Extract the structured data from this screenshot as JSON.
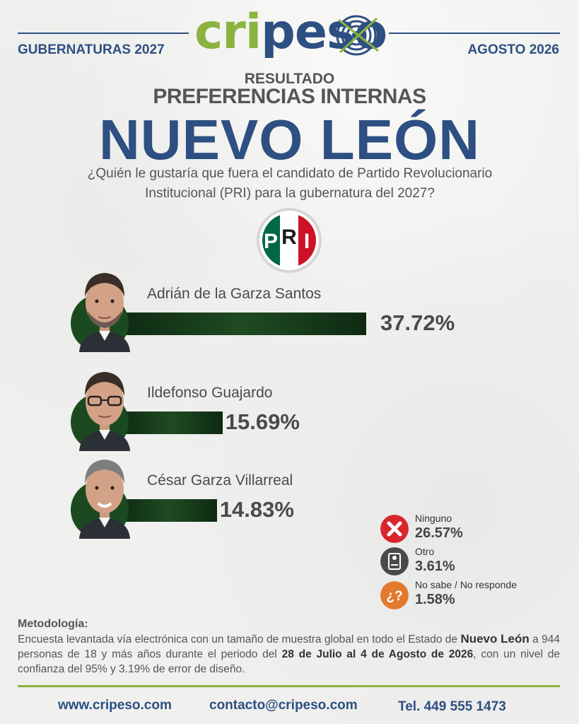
{
  "header": {
    "left": "GUBERNATURAS 2027",
    "right": "AGOSTO 2026",
    "logo": {
      "green_part": "cri",
      "blue_part": "peso"
    }
  },
  "titles": {
    "small": "RESULTADO",
    "mid": "PREFERENCIAS INTERNAS",
    "big": "NUEVO LEÓN"
  },
  "question": {
    "line1": "¿Quién le gustaría que fuera el candidato de Partido Revolucionario",
    "line2": "Institucional (PRI) para la gubernatura del 2027?"
  },
  "party_logo": {
    "letters": [
      "P",
      "R",
      "I"
    ],
    "colors": [
      "#006847",
      "#ffffff",
      "#ce1126"
    ]
  },
  "chart_data": {
    "type": "bar",
    "orientation": "horizontal",
    "categories": [
      "Adrián de la Garza Santos",
      "Ildefonso Guajardo",
      "César Garza Villarreal"
    ],
    "values": [
      37.72,
      15.69,
      14.83
    ],
    "value_labels": [
      "37.72%",
      "15.69%",
      "14.83%"
    ],
    "unit": "%",
    "bar_color": "#1c4a20",
    "others": [
      {
        "label": "Ninguno",
        "value": 26.57,
        "display": "26.57%",
        "icon": "x-icon",
        "color": "#d8262f"
      },
      {
        "label": "Otro",
        "value": 3.61,
        "display": "3.61%",
        "icon": "ballot-icon",
        "color": "#4a4a4a"
      },
      {
        "label": "No sabe / No responde",
        "value": 1.58,
        "display": "1.58%",
        "icon": "question-icon",
        "color": "#e27a2e"
      }
    ]
  },
  "methodology": {
    "title": "Metodología:",
    "p1": "Encuesta levantada vía electrónica con un tamaño de muestra global en todo el Estado de",
    "b1": "Nuevo León",
    "p2": "a 944 personas de 18 y más años durante el periodo del",
    "b2": "28 de Julio al 4 de Agosto de 2026",
    "p3": ", con un nivel de confianza del 95% y 3.19% de error de diseño."
  },
  "footer": {
    "web": "www.cripeso.com",
    "email": "contacto@cripeso.com",
    "phone": "Tel. 449 555 1473"
  },
  "colors": {
    "brand_blue": "#2d4f82",
    "brand_green": "#8ab33f"
  }
}
